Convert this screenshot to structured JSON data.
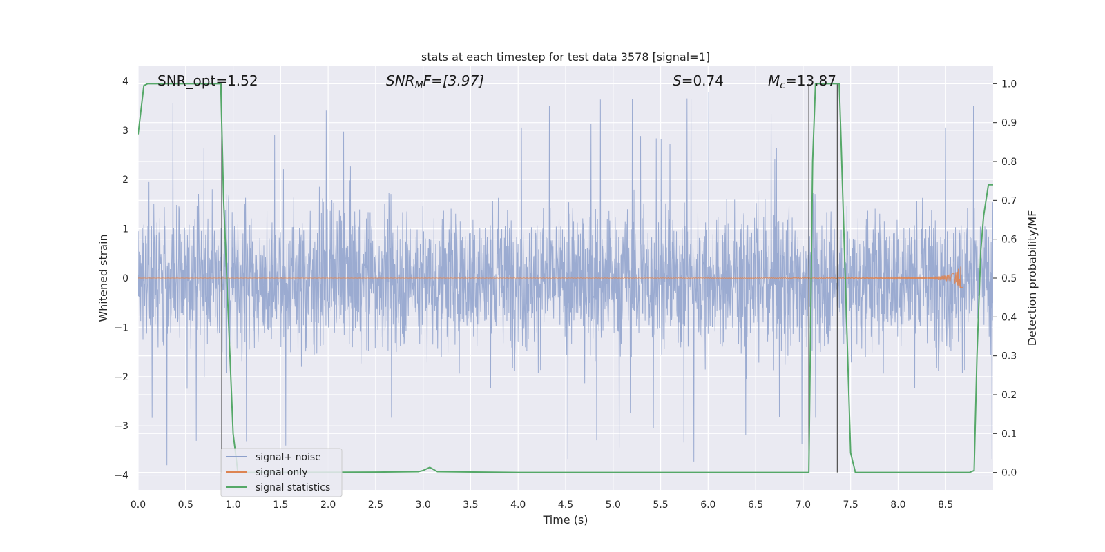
{
  "chart_data": {
    "type": "line",
    "title": "stats at each timestep for test data 3578 [signal=1]",
    "xlabel": "Time (s)",
    "ylabel": "Whitened strain",
    "y2label": "Detection probability/MF",
    "xlim": [
      0,
      9
    ],
    "ylim": [
      -4.3,
      4.3
    ],
    "y2lim": [
      -0.045,
      1.045
    ],
    "xticks": [
      "0.0",
      "0.5",
      "1.0",
      "1.5",
      "2.0",
      "2.5",
      "3.0",
      "3.5",
      "4.0",
      "4.5",
      "5.0",
      "5.5",
      "6.0",
      "6.5",
      "7.0",
      "7.5",
      "8.0",
      "8.5"
    ],
    "yticks": [
      "4",
      "3",
      "2",
      "1",
      "0",
      "−1",
      "−2",
      "−3",
      "−4"
    ],
    "y2ticks": [
      "1.0",
      "0.9",
      "0.8",
      "0.7",
      "0.6",
      "0.5",
      "0.4",
      "0.3",
      "0.2",
      "0.1",
      "0.0"
    ],
    "grid": true,
    "legend_position": "lower-left",
    "annotations": {
      "snr_opt": "SNR_opt=1.52",
      "snr_mf_italic": "SNR",
      "snr_mf_sub": "M",
      "snr_mf_rest": "F=[3.97]",
      "s_italic": "S",
      "s_rest": "=0.74",
      "mc_italic": "M",
      "mc_sub": "c",
      "mc_rest": "=13.87"
    },
    "series": [
      {
        "name": "signal+ noise",
        "color": "#8da0cb",
        "description_values": "noise band approximately within ±2 with spikes to ±3.8",
        "envelope": {
          "typical": 2.0,
          "peak": 3.85
        }
      },
      {
        "name": "signal only",
        "color": "#dd8452",
        "chirp_end_time": 8.68,
        "chirp_peak_amplitude": 0.3
      },
      {
        "name": "signal statistics",
        "color": "#55a868",
        "x": [
          0.0,
          0.06,
          0.1,
          0.87,
          0.9,
          1.0,
          1.05,
          2.5,
          2.95,
          3.0,
          3.07,
          3.15,
          4.0,
          7.06,
          7.1,
          7.13,
          7.38,
          7.4,
          7.5,
          7.55,
          8.0,
          8.5,
          8.75,
          8.8,
          8.83,
          8.87,
          8.9,
          8.95,
          9.0
        ],
        "values": [
          0.87,
          0.995,
          1.0,
          1.0,
          0.7,
          0.1,
          0.0,
          0.001,
          0.002,
          0.005,
          0.013,
          0.002,
          0.0,
          0.0,
          0.8,
          1.0,
          1.0,
          0.85,
          0.05,
          0.0,
          0.0,
          0.0,
          0.0,
          0.005,
          0.3,
          0.57,
          0.66,
          0.74,
          0.74
        ]
      }
    ],
    "vertical_markers_x": [
      0.88,
      7.06,
      7.36
    ]
  }
}
